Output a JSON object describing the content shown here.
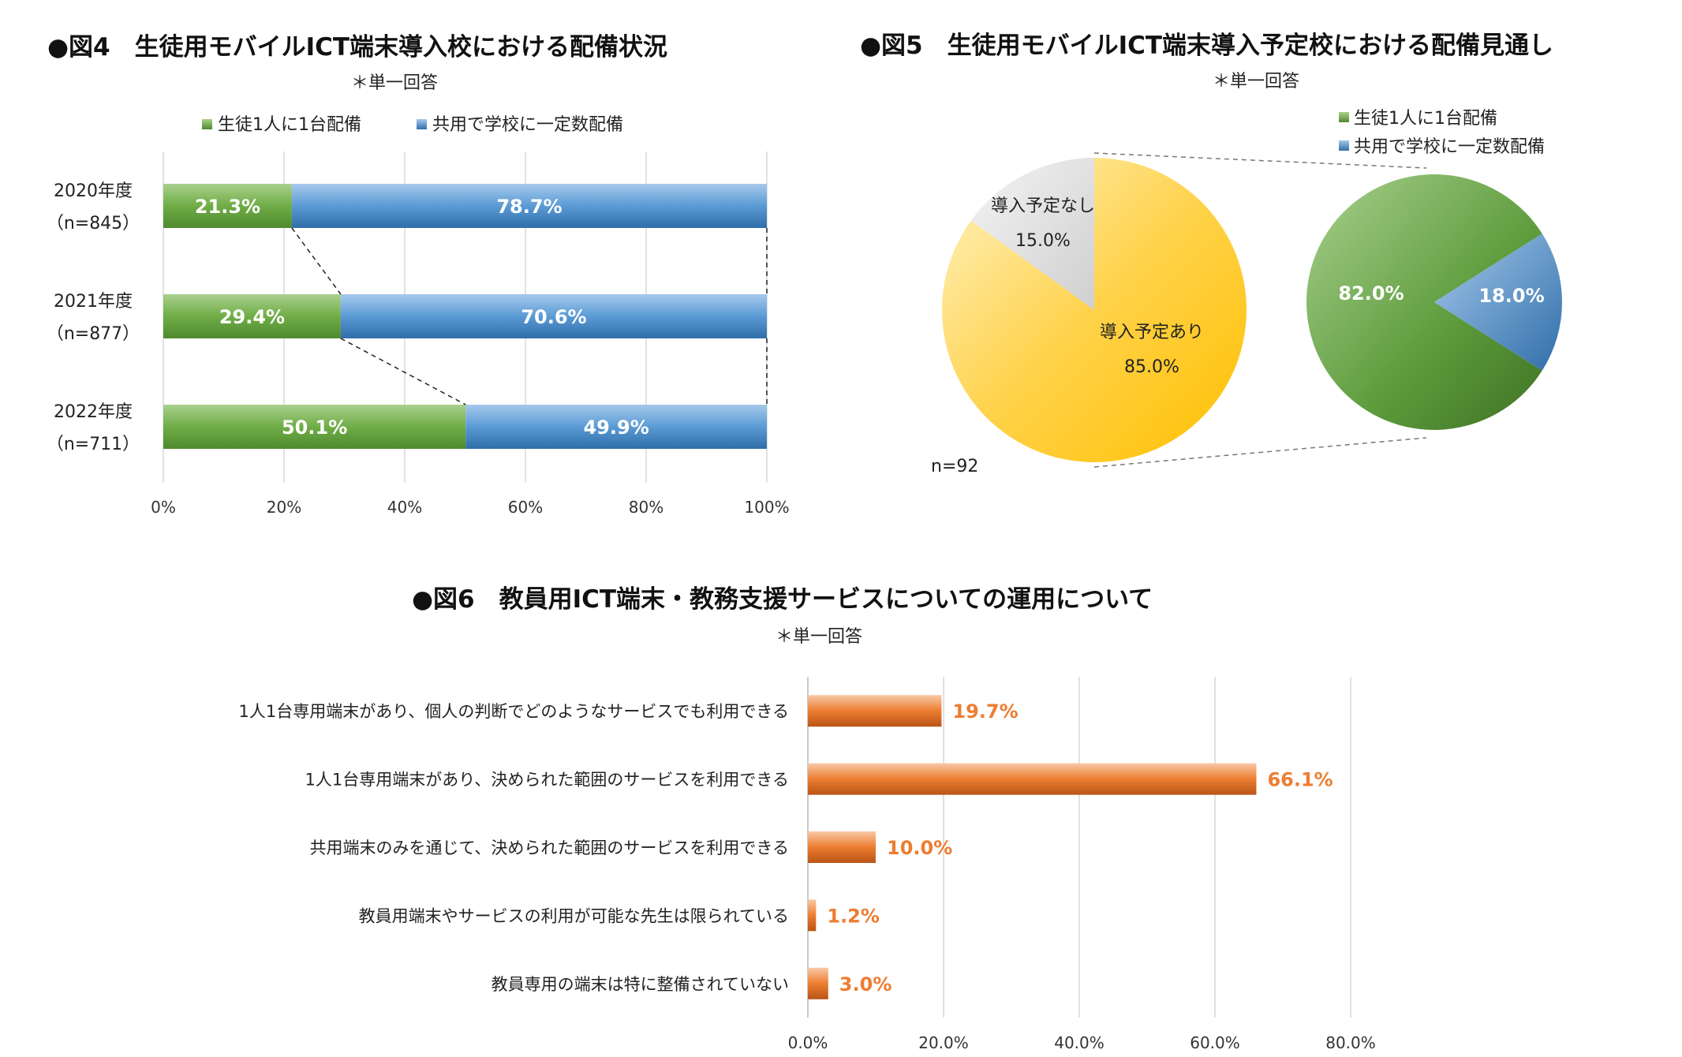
{
  "charts": [
    {
      "id": "fig4",
      "title": "●図4　生徒用モバイルICT端末導入校における配備状況",
      "subtitle": "＊単一回答",
      "chart_data": {
        "type": "bar",
        "orientation": "horizontal",
        "stacked": true,
        "percent_stacked": true,
        "categories": [
          "2020年度",
          "2021年度",
          "2022年度"
        ],
        "category_sublabels": [
          "（n=845）",
          "（n=877）",
          "（n=711）"
        ],
        "series": [
          {
            "name": "生徒1人に1台配備",
            "values": [
              21.3,
              29.4,
              50.1
            ],
            "labels": [
              "21.3%",
              "29.4%",
              "50.1%"
            ],
            "color": "#70ad47"
          },
          {
            "name": "共用で学校に一定数配備",
            "values": [
              78.7,
              70.6,
              49.9
            ],
            "labels": [
              "78.7%",
              "70.6%",
              "49.9%"
            ],
            "color": "#5b9bd5"
          }
        ],
        "xlim": [
          0,
          100
        ],
        "xticks": [
          "0%",
          "20%",
          "40%",
          "60%",
          "80%",
          "100%"
        ],
        "grid": true,
        "legend_position": "top",
        "series_lines": true
      }
    },
    {
      "id": "fig5",
      "title": "●図5　生徒用モバイルICT端末導入予定校における配備見通し",
      "subtitle": "＊単一回答",
      "chart_data": {
        "type": "pie",
        "variant": "pie-of-pie",
        "note": "n=92",
        "primary": {
          "slices": [
            {
              "label": "導入予定あり",
              "value": 85.0,
              "value_label": "85.0%",
              "color": "#ffc000"
            },
            {
              "label": "導入予定なし",
              "value": 15.0,
              "value_label": "15.0%",
              "color": "#d9d9d9"
            }
          ]
        },
        "secondary": {
          "slices": [
            {
              "label": "生徒1人に1台配備",
              "value": 82.0,
              "value_label": "82.0%",
              "color": "#70ad47"
            },
            {
              "label": "共用で学校に一定数配備",
              "value": 18.0,
              "value_label": "18.0%",
              "color": "#5b9bd5"
            }
          ]
        },
        "legend": [
          "生徒1人に1台配備",
          "共用で学校に一定数配備"
        ],
        "legend_position": "top-right"
      }
    },
    {
      "id": "fig6",
      "title": "●図6　教員用ICT端末・教務支援サービスについての運用について",
      "subtitle": "＊単一回答",
      "chart_data": {
        "type": "bar",
        "orientation": "horizontal",
        "categories": [
          "1人1台専用端末があり、個人の判断でどのようなサービスでも利用できる",
          "1人1台専用端末があり、決められた範囲のサービスを利用できる",
          "共用端末のみを通じて、決められた範囲のサービスを利用できる",
          "教員用端末やサービスの利用が可能な先生は限られている",
          "教員専用の端末は特に整備されていない"
        ],
        "values": [
          19.7,
          66.1,
          10.0,
          1.2,
          3.0
        ],
        "value_labels": [
          "19.7%",
          "66.1%",
          "10.0%",
          "1.2%",
          "3.0%"
        ],
        "xlim": [
          0,
          80
        ],
        "xticks": [
          "0.0%",
          "20.0%",
          "40.0%",
          "60.0%",
          "80.0%"
        ],
        "grid": true,
        "color": "#ed7d31",
        "label_color": "#ed7d31"
      }
    }
  ]
}
